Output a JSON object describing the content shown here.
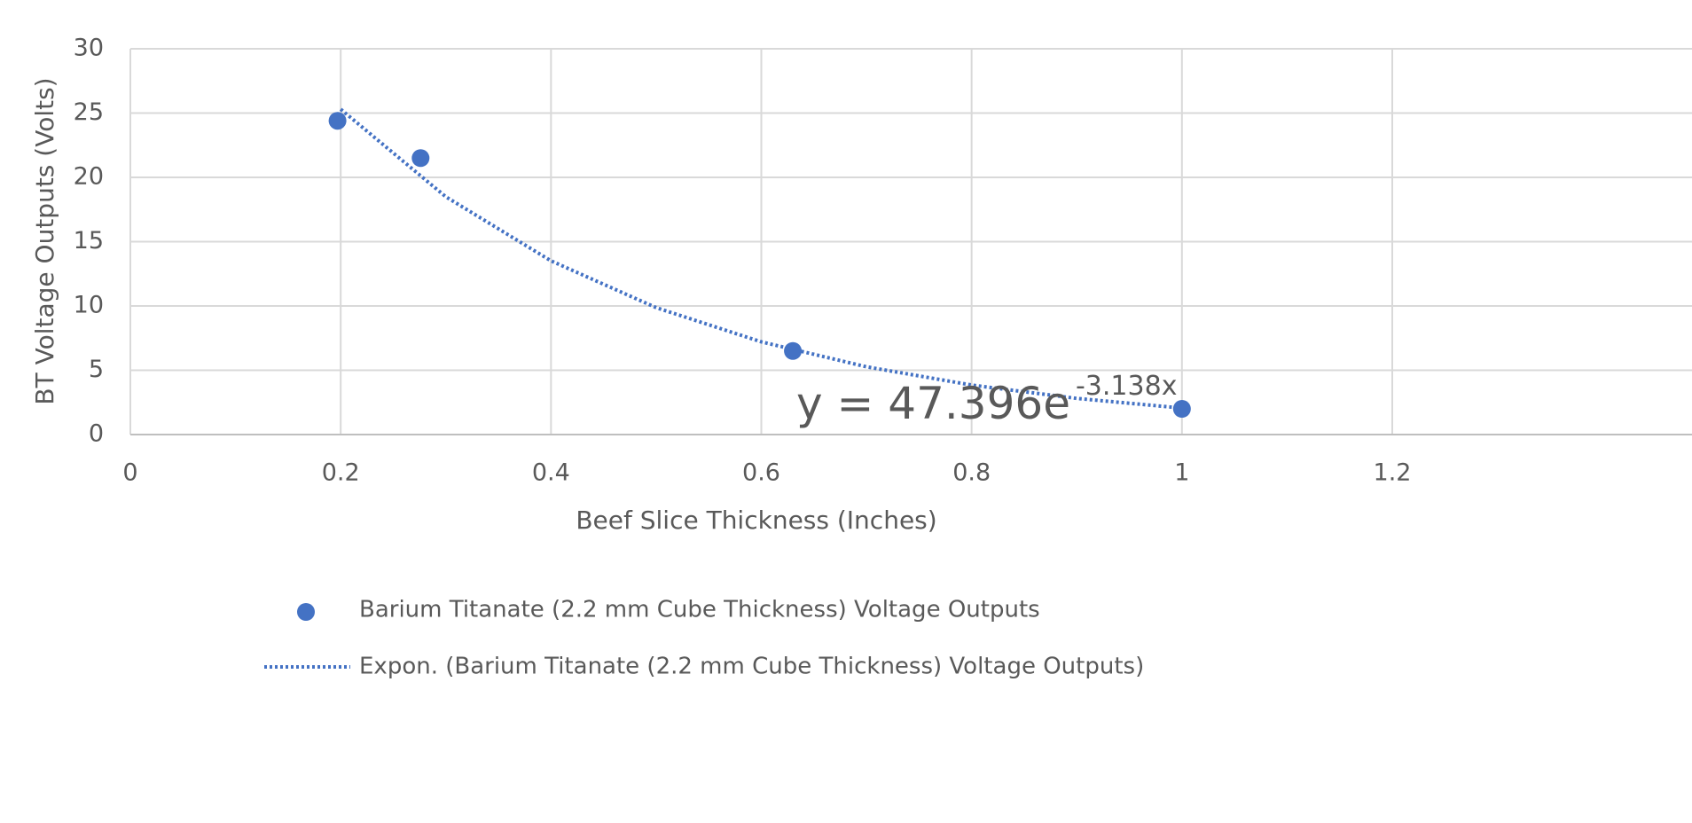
{
  "chart_data": {
    "type": "scatter",
    "x_label": "Beef Slice Thickness (Inches)",
    "y_label": "BT Voltage Outputs (Volts)",
    "series": [
      {
        "name": "Barium Titanate (2.2 mm Cube Thickness) Voltage Outputs",
        "color": "#4472c4",
        "x": [
          0.197,
          0.276,
          0.63,
          1.0
        ],
        "values": [
          24.4,
          21.5,
          6.5,
          2.0
        ]
      }
    ],
    "trendline": {
      "name": "Expon. (Barium Titanate (2.2 mm Cube Thickness) Voltage Outputs)",
      "color": "#4472c4",
      "x": [
        0.2,
        0.3,
        0.4,
        0.5,
        0.6,
        0.7,
        0.8,
        0.9,
        1.0
      ],
      "values": [
        25.3,
        18.49,
        13.51,
        9.87,
        7.21,
        5.27,
        3.85,
        2.81,
        2.06
      ]
    },
    "equation": "y = 47.396e",
    "equation_exponent": "-3.138x",
    "xlim": [
      0,
      1.2
    ],
    "xticks": [
      0,
      0.2,
      0.4,
      0.6,
      0.8,
      1,
      1.2
    ],
    "ylim": [
      0,
      30
    ],
    "yticks": [
      0,
      5,
      10,
      15,
      20,
      25,
      30
    ],
    "grid": true,
    "legend": "bottom"
  }
}
